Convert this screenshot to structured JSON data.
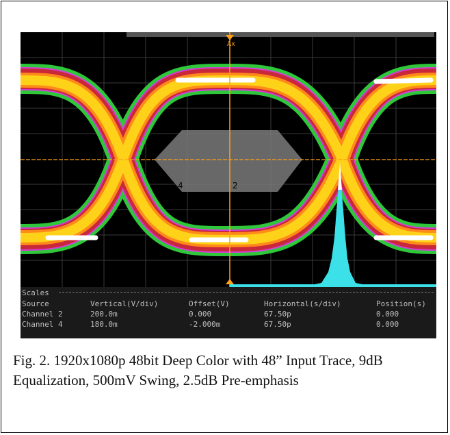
{
  "scope": {
    "cursor_label": "Ax",
    "ref_label_left": "4",
    "ref_label_right": "2",
    "scales": {
      "title": "Scales",
      "columns": [
        "Source",
        "Vertical(V/div)",
        "Offset(V)",
        "Horizontal(s/div)",
        "Position(s)"
      ],
      "rows": [
        [
          "Channel 2",
          "200.0m",
          "0.000",
          "67.50p",
          "0.000"
        ],
        [
          "Channel 4",
          "180.0m",
          "-2.000m",
          "67.50p",
          "0.000"
        ]
      ]
    },
    "colors": {
      "background": "#000000",
      "grid": "#3a3a3a",
      "cursor": "#ff9f1a",
      "mask": "#7a7a7a",
      "histogram": "#3ce0e8",
      "eye_green": "#2ec83a",
      "eye_magenta": "#d43cd8",
      "eye_red": "#c8283a",
      "eye_orange": "#ff8a1a",
      "eye_yellow": "#ffd21a",
      "eye_white": "#ffffff"
    }
  },
  "caption": "Fig. 2. 1920x1080p 48bit Deep Color with 48” Input Trace, 9dB Equalization, 500mV Swing, 2.5dB Pre-emphasis"
}
